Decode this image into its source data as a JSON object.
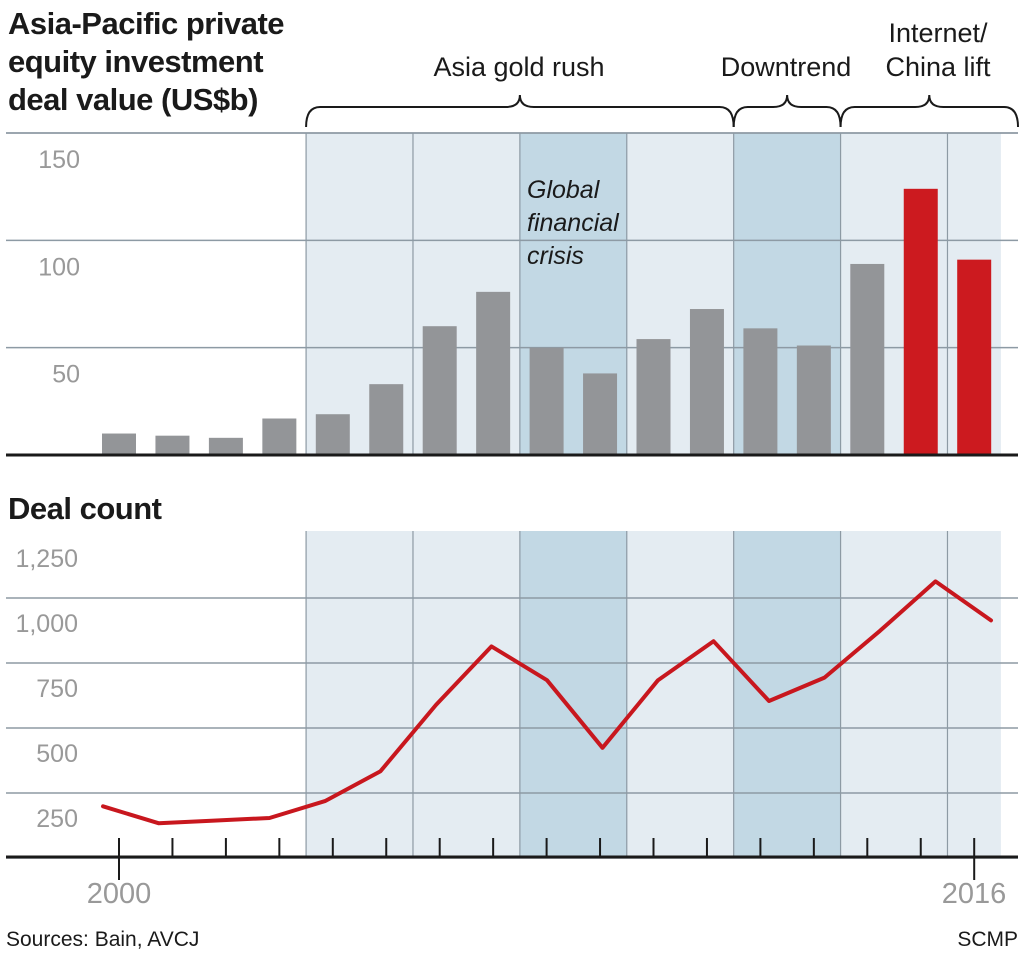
{
  "chart_data": [
    {
      "type": "bar",
      "title": "Asia-Pacific private equity investment deal value (US$b)",
      "title_lines": [
        "Asia-Pacific private",
        "equity investment",
        "deal value (US$b)"
      ],
      "categories": [
        "2000",
        "2001",
        "2002",
        "2003",
        "2004",
        "2005",
        "2006",
        "2007",
        "2008",
        "2009",
        "2010",
        "2011",
        "2012",
        "2013",
        "2014",
        "2015",
        "2016"
      ],
      "values": [
        10,
        9,
        8,
        17,
        19,
        33,
        60,
        76,
        50,
        38,
        54,
        68,
        59,
        51,
        89,
        124,
        91
      ],
      "highlight_color": "#cc1a1f",
      "base_color": "#939598",
      "highlight_indices": [
        15,
        16
      ],
      "ylim": [
        0,
        150
      ],
      "yticks": [
        50,
        100,
        150
      ],
      "ytick_labels": [
        "50",
        "100",
        "150"
      ],
      "grid": true
    },
    {
      "type": "line",
      "title": "Deal count",
      "categories": [
        "2000",
        "2001",
        "2002",
        "2003",
        "2004",
        "2005",
        "2006",
        "2007",
        "2008",
        "2009",
        "2010",
        "2011",
        "2012",
        "2013",
        "2014",
        "2015",
        "2016"
      ],
      "values": [
        195,
        130,
        140,
        150,
        215,
        330,
        585,
        810,
        680,
        420,
        680,
        830,
        600,
        690,
        870,
        1060,
        910
      ],
      "line_color": "#c8171e",
      "ylim": [
        0,
        1250
      ],
      "yticks": [
        250,
        500,
        750,
        1000,
        1250
      ],
      "ytick_labels": [
        "250",
        "500",
        "750",
        "1,000",
        "1,250"
      ],
      "xtick_labels": [
        "2000",
        "2016"
      ],
      "grid": true
    }
  ],
  "periods": [
    {
      "label": "Asia gold rush",
      "from": "2004",
      "to": "2011"
    },
    {
      "label": "Downtrend",
      "from": "2012",
      "to": "2013"
    },
    {
      "label_lines": [
        "Internet/",
        "China lift"
      ],
      "from": "2014",
      "to": "2016"
    }
  ],
  "annotation": {
    "text_lines": [
      "Global",
      "financial",
      "crisis"
    ],
    "years": [
      "2008",
      "2009"
    ]
  },
  "colors": {
    "shade_light": "#e4ecf2",
    "shade_dark": "#c2d8e4"
  },
  "footer": {
    "sources": "Sources: Bain, AVCJ",
    "credit": "SCMP"
  }
}
